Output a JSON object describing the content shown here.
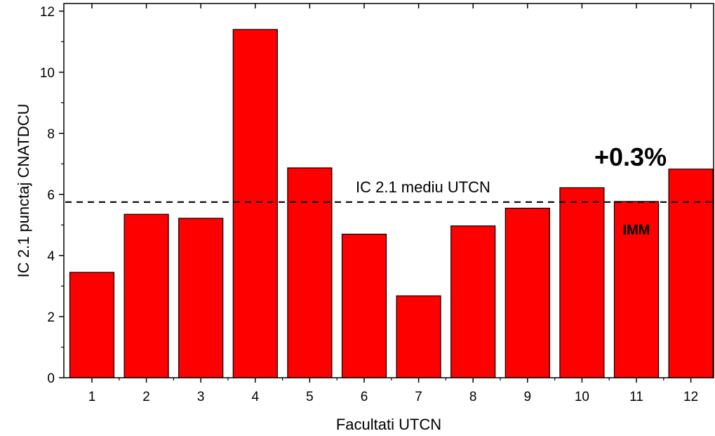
{
  "chart_data": {
    "type": "bar",
    "categories": [
      "1",
      "2",
      "3",
      "4",
      "5",
      "6",
      "7",
      "8",
      "9",
      "10",
      "11",
      "12"
    ],
    "values": [
      3.45,
      5.35,
      5.22,
      11.4,
      6.87,
      4.7,
      2.68,
      4.97,
      5.55,
      6.22,
      5.77,
      6.83
    ],
    "xlabel": "Facultati UTCN",
    "ylabel": "IC 2.1 punctaj CNATDCU",
    "ylim": [
      0,
      12.25
    ],
    "yticks": [
      "0",
      "2",
      "4",
      "6",
      "8",
      "10",
      "12"
    ],
    "bar_color": "#ff0000",
    "reference_line": {
      "value": 5.75,
      "label": "IC 2.1 mediu UTCN",
      "style": "dashed"
    },
    "annotations": [
      {
        "text": "+0.3%",
        "category": "11"
      },
      {
        "text": "IMM",
        "category": "11"
      }
    ],
    "grid": false,
    "legend": "none"
  }
}
